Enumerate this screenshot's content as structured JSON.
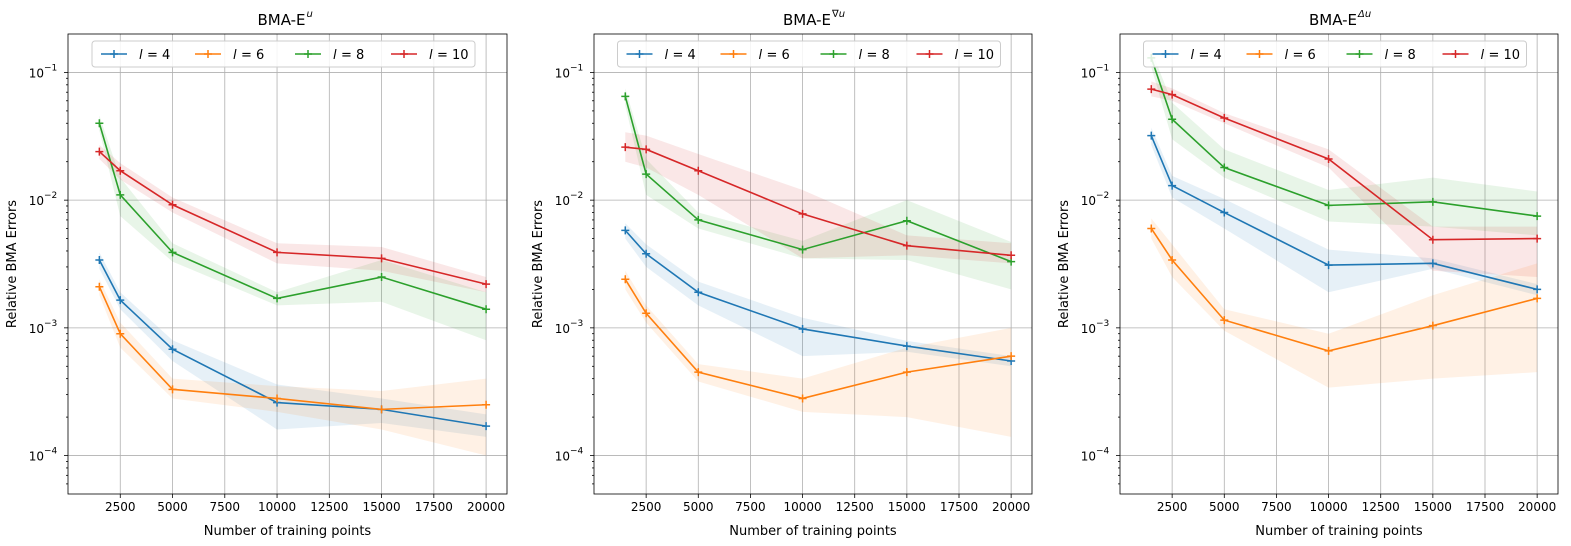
{
  "chart_data": [
    {
      "type": "line",
      "title": "BMA-E",
      "title_sup": "u",
      "xlabel": "Number of training points",
      "ylabel": "Relative BMA Errors",
      "yscale": "log",
      "xlim": [
        0,
        21000
      ],
      "ylim": [
        5e-05,
        0.2
      ],
      "xticks": [
        2500,
        5000,
        7500,
        10000,
        12500,
        15000,
        17500,
        20000
      ],
      "xtick_labels": [
        "2500",
        "5000",
        "7500",
        "10000",
        "12500",
        "15000",
        "17500",
        "20000"
      ],
      "yticks": [
        0.0001,
        0.001,
        0.01,
        0.1
      ],
      "ytick_labels": [
        "10",
        "10",
        "10",
        "10"
      ],
      "ytick_exponents": [
        "−4",
        "−3",
        "−2",
        "−1"
      ],
      "legend_position": "top-center",
      "x": [
        1500,
        2500,
        5000,
        10000,
        15000,
        20000
      ],
      "series": [
        {
          "name": "l = 4",
          "label_var": "l",
          "label_val": "= 4",
          "color": "#1f77b4",
          "values": [
            0.0034,
            0.00165,
            0.00068,
            0.00026,
            0.00023,
            0.00017
          ],
          "lower": [
            0.0029,
            0.0014,
            0.00055,
            0.00016,
            0.00018,
            0.00014
          ],
          "upper": [
            0.0039,
            0.0019,
            0.0008,
            0.00036,
            0.00028,
            0.00021
          ]
        },
        {
          "name": "l = 6",
          "label_var": "l",
          "label_val": "= 6",
          "color": "#ff7f0e",
          "values": [
            0.0021,
            0.0009,
            0.00033,
            0.00028,
            0.00023,
            0.00025
          ],
          "lower": [
            0.0018,
            0.0007,
            0.00028,
            0.00022,
            0.00016,
            0.0001
          ],
          "upper": [
            0.0024,
            0.0011,
            0.0004,
            0.00035,
            0.00032,
            0.0004
          ]
        },
        {
          "name": "l = 8",
          "label_var": "l",
          "label_val": "= 8",
          "color": "#2ca02c",
          "values": [
            0.04,
            0.011,
            0.0039,
            0.0017,
            0.0025,
            0.0014
          ],
          "lower": [
            0.035,
            0.0075,
            0.0033,
            0.0015,
            0.0016,
            0.0008
          ],
          "upper": [
            0.046,
            0.015,
            0.0046,
            0.0019,
            0.0034,
            0.0019
          ]
        },
        {
          "name": "l = 10",
          "label_var": "l",
          "label_val": "= 10",
          "color": "#d62728",
          "values": [
            0.024,
            0.017,
            0.0092,
            0.0039,
            0.0035,
            0.0022
          ],
          "lower": [
            0.021,
            0.0145,
            0.008,
            0.0032,
            0.0028,
            0.0019
          ],
          "upper": [
            0.027,
            0.0195,
            0.0105,
            0.0046,
            0.0043,
            0.0025
          ]
        }
      ]
    },
    {
      "type": "line",
      "title": "BMA-E",
      "title_sup": "∇u",
      "xlabel": "Number of training points",
      "ylabel": "Relative BMA Errors",
      "yscale": "log",
      "xlim": [
        0,
        21000
      ],
      "ylim": [
        5e-05,
        0.2
      ],
      "xticks": [
        2500,
        5000,
        7500,
        10000,
        12500,
        15000,
        17500,
        20000
      ],
      "xtick_labels": [
        "2500",
        "5000",
        "7500",
        "10000",
        "12500",
        "15000",
        "17500",
        "20000"
      ],
      "yticks": [
        0.0001,
        0.001,
        0.01,
        0.1
      ],
      "ytick_labels": [
        "10",
        "10",
        "10",
        "10"
      ],
      "ytick_exponents": [
        "−4",
        "−3",
        "−2",
        "−1"
      ],
      "legend_position": "top-center",
      "x": [
        1500,
        2500,
        5000,
        10000,
        15000,
        20000
      ],
      "series": [
        {
          "name": "l = 4",
          "label_var": "l",
          "label_val": "= 4",
          "color": "#1f77b4",
          "values": [
            0.0058,
            0.0038,
            0.0019,
            0.00098,
            0.00072,
            0.00055
          ],
          "lower": [
            0.005,
            0.003,
            0.0015,
            0.0006,
            0.00065,
            0.0005
          ],
          "upper": [
            0.0066,
            0.0045,
            0.0023,
            0.0012,
            0.00079,
            0.0006
          ]
        },
        {
          "name": "l = 6",
          "label_var": "l",
          "label_val": "= 6",
          "color": "#ff7f0e",
          "values": [
            0.0024,
            0.0013,
            0.00045,
            0.00028,
            0.00045,
            0.0006
          ],
          "lower": [
            0.002,
            0.0011,
            0.00038,
            0.00022,
            0.0002,
            0.00014
          ],
          "upper": [
            0.0028,
            0.0015,
            0.00052,
            0.0004,
            0.0007,
            0.001
          ]
        },
        {
          "name": "l = 8",
          "label_var": "l",
          "label_val": "= 8",
          "color": "#2ca02c",
          "values": [
            0.065,
            0.016,
            0.007,
            0.0041,
            0.0069,
            0.0033
          ],
          "lower": [
            0.055,
            0.011,
            0.006,
            0.0035,
            0.0034,
            0.002
          ],
          "upper": [
            0.075,
            0.021,
            0.008,
            0.0048,
            0.01,
            0.0047
          ]
        },
        {
          "name": "l = 10",
          "label_var": "l",
          "label_val": "= 10",
          "color": "#d62728",
          "values": [
            0.026,
            0.025,
            0.017,
            0.0078,
            0.0044,
            0.0037
          ],
          "lower": [
            0.02,
            0.018,
            0.011,
            0.0035,
            0.0037,
            0.0032
          ],
          "upper": [
            0.034,
            0.032,
            0.023,
            0.012,
            0.0053,
            0.0046
          ]
        }
      ]
    },
    {
      "type": "line",
      "title": "BMA-E",
      "title_sup": "Δu",
      "xlabel": "Number of training points",
      "ylabel": "Relative BMA Errors",
      "yscale": "log",
      "xlim": [
        0,
        21000
      ],
      "ylim": [
        5e-05,
        0.2
      ],
      "xticks": [
        2500,
        5000,
        7500,
        10000,
        12500,
        15000,
        17500,
        20000
      ],
      "xtick_labels": [
        "2500",
        "5000",
        "7500",
        "10000",
        "12500",
        "15000",
        "17500",
        "20000"
      ],
      "yticks": [
        0.0001,
        0.001,
        0.01,
        0.1
      ],
      "ytick_labels": [
        "10",
        "10",
        "10",
        "10"
      ],
      "ytick_exponents": [
        "−4",
        "−3",
        "−2",
        "−1"
      ],
      "legend_position": "top-center",
      "x": [
        1500,
        2500,
        5000,
        10000,
        15000,
        20000
      ],
      "series": [
        {
          "name": "l = 4",
          "label_var": "l",
          "label_val": "= 4",
          "color": "#1f77b4",
          "values": [
            0.032,
            0.013,
            0.008,
            0.0031,
            0.0032,
            0.002
          ],
          "lower": [
            0.027,
            0.0105,
            0.006,
            0.0019,
            0.0029,
            0.0018
          ],
          "upper": [
            0.037,
            0.0155,
            0.0102,
            0.0041,
            0.0035,
            0.0022
          ]
        },
        {
          "name": "l = 6",
          "label_var": "l",
          "label_val": "= 6",
          "color": "#ff7f0e",
          "values": [
            0.006,
            0.0034,
            0.00115,
            0.00066,
            0.00104,
            0.0017
          ],
          "lower": [
            0.005,
            0.0025,
            0.00095,
            0.00034,
            0.0004,
            0.00045
          ],
          "upper": [
            0.0072,
            0.0045,
            0.0014,
            0.0009,
            0.0018,
            0.0032
          ]
        },
        {
          "name": "l = 8",
          "label_var": "l",
          "label_val": "= 8",
          "color": "#2ca02c",
          "values": [
            0.13,
            0.043,
            0.018,
            0.0091,
            0.0097,
            0.0075
          ],
          "lower": [
            0.11,
            0.03,
            0.015,
            0.0068,
            0.0062,
            0.0053
          ],
          "upper": [
            0.15,
            0.058,
            0.025,
            0.012,
            0.015,
            0.0117
          ]
        },
        {
          "name": "l = 10",
          "label_var": "l",
          "label_val": "= 10",
          "color": "#d62728",
          "values": [
            0.074,
            0.067,
            0.044,
            0.021,
            0.0049,
            0.005
          ],
          "lower": [
            0.065,
            0.06,
            0.04,
            0.018,
            0.0028,
            0.0025
          ],
          "upper": [
            0.085,
            0.075,
            0.048,
            0.025,
            0.0062,
            0.0062
          ]
        }
      ]
    }
  ]
}
